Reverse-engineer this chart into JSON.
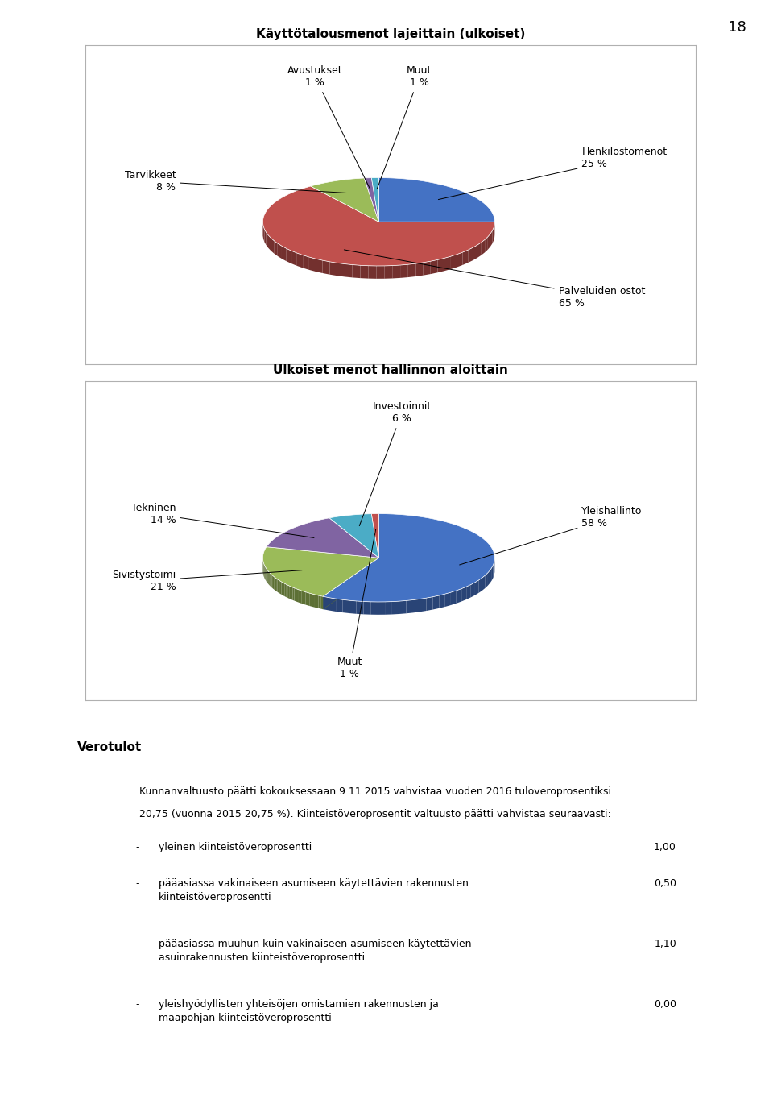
{
  "page_number": "18",
  "chart1": {
    "title": "Käyttötalousmenot lajeittain (ulkoiset)",
    "slices": [
      25,
      65,
      8,
      1,
      1
    ],
    "colors": [
      "#4472C4",
      "#C0504D",
      "#9BBB59",
      "#8064A2",
      "#4BACC6"
    ],
    "startangle": 90
  },
  "chart2": {
    "title": "Ulkoiset menot hallinnon aloittain",
    "slices": [
      58,
      21,
      14,
      6,
      1
    ],
    "colors": [
      "#4472C4",
      "#9BBB59",
      "#8064A2",
      "#4BACC6",
      "#C0504D"
    ],
    "startangle": 90
  },
  "verotulot_header": "Verotulot",
  "paragraph1": "Kunnanvaltuusto päätti kokouksessaan 9.11.2015 vahvistaa vuoden 2016 tuloveroprosentiksi",
  "paragraph2": "20,75 (vuonna 2015 20,75 %). Kiinteistöveroprosentit valtuusto päätti vahvistaa seuraavasti:",
  "bullet_items": [
    {
      "text": "yleinen kiinteistöveroprosentti",
      "value": "1,00",
      "lines": 1
    },
    {
      "text": "pääasiassa vakinaiseen asumiseen käytettävien rakennusten\nkiinteistöveroprosentti",
      "value": "0,50",
      "lines": 2
    },
    {
      "text": "pääasiassa muuhun kuin vakinaiseen asumiseen käytettävien\nasuinrakennusten kiinteistöveroprosentti",
      "value": "1,10",
      "lines": 2
    },
    {
      "text": "yleishyödyllisten yhteisöjen omistamien rakennusten ja\nmaapohjan kiinteistöveroprosentti",
      "value": "0,00",
      "lines": 2
    }
  ],
  "background_color": "#ffffff",
  "box_edge_color": "#b0b0b0",
  "text_color": "#000000",
  "title_fontsize": 11,
  "label_fontsize": 9,
  "text_fontsize": 9
}
